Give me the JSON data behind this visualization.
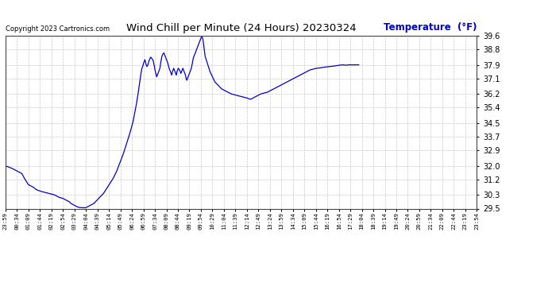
{
  "title": "Wind Chill per Minute (24 Hours) 20230324",
  "copyright": "Copyright 2023 Cartronics.com",
  "ylabel": "Temperature  (°F)",
  "ylabel_color": "#0000cc",
  "line_color": "#0000cc",
  "bg_color": "#ffffff",
  "grid_color": "#bbbbbb",
  "ylim": [
    29.5,
    39.6
  ],
  "yticks": [
    29.5,
    30.3,
    31.2,
    32.0,
    32.9,
    33.7,
    34.5,
    35.4,
    36.2,
    37.1,
    37.9,
    38.8,
    39.6
  ],
  "x_labels": [
    "23:59",
    "00:34",
    "01:09",
    "01:44",
    "02:19",
    "02:54",
    "03:29",
    "04:04",
    "04:39",
    "05:14",
    "05:49",
    "06:24",
    "06:59",
    "07:34",
    "08:09",
    "08:44",
    "09:19",
    "09:54",
    "10:29",
    "11:04",
    "11:39",
    "12:14",
    "12:49",
    "13:24",
    "13:59",
    "14:34",
    "15:09",
    "15:44",
    "16:19",
    "16:54",
    "17:29",
    "18:04",
    "18:39",
    "19:14",
    "19:49",
    "20:24",
    "20:59",
    "21:34",
    "22:09",
    "22:44",
    "23:19",
    "23:54"
  ],
  "data_points": [
    [
      0,
      32.0
    ],
    [
      20,
      31.85
    ],
    [
      35,
      31.7
    ],
    [
      50,
      31.55
    ],
    [
      60,
      31.2
    ],
    [
      65,
      31.05
    ],
    [
      70,
      30.9
    ],
    [
      85,
      30.75
    ],
    [
      95,
      30.6
    ],
    [
      110,
      30.5
    ],
    [
      130,
      30.4
    ],
    [
      150,
      30.3
    ],
    [
      165,
      30.15
    ],
    [
      175,
      30.1
    ],
    [
      185,
      30.0
    ],
    [
      195,
      29.9
    ],
    [
      200,
      29.8
    ],
    [
      205,
      29.75
    ],
    [
      210,
      29.7
    ],
    [
      215,
      29.65
    ],
    [
      220,
      29.6
    ],
    [
      225,
      29.57
    ],
    [
      230,
      29.56
    ],
    [
      235,
      29.55
    ],
    [
      240,
      29.55
    ],
    [
      245,
      29.55
    ],
    [
      250,
      29.6
    ],
    [
      260,
      29.7
    ],
    [
      270,
      29.8
    ],
    [
      280,
      30.0
    ],
    [
      290,
      30.2
    ],
    [
      300,
      30.4
    ],
    [
      310,
      30.7
    ],
    [
      320,
      31.0
    ],
    [
      330,
      31.3
    ],
    [
      340,
      31.7
    ],
    [
      350,
      32.2
    ],
    [
      360,
      32.7
    ],
    [
      370,
      33.3
    ],
    [
      380,
      33.9
    ],
    [
      390,
      34.6
    ],
    [
      395,
      35.1
    ],
    [
      400,
      35.6
    ],
    [
      405,
      36.2
    ],
    [
      408,
      36.6
    ],
    [
      411,
      37.0
    ],
    [
      414,
      37.4
    ],
    [
      417,
      37.7
    ],
    [
      420,
      37.85
    ],
    [
      422,
      38.0
    ],
    [
      424,
      38.1
    ],
    [
      426,
      38.2
    ],
    [
      428,
      38.05
    ],
    [
      430,
      37.9
    ],
    [
      432,
      37.8
    ],
    [
      434,
      37.85
    ],
    [
      436,
      37.95
    ],
    [
      438,
      38.1
    ],
    [
      440,
      38.2
    ],
    [
      442,
      38.3
    ],
    [
      444,
      38.35
    ],
    [
      446,
      38.3
    ],
    [
      448,
      38.25
    ],
    [
      450,
      38.2
    ],
    [
      452,
      38.1
    ],
    [
      454,
      37.9
    ],
    [
      456,
      37.7
    ],
    [
      458,
      37.5
    ],
    [
      460,
      37.35
    ],
    [
      462,
      37.2
    ],
    [
      464,
      37.3
    ],
    [
      466,
      37.4
    ],
    [
      468,
      37.5
    ],
    [
      470,
      37.6
    ],
    [
      472,
      37.7
    ],
    [
      474,
      38.0
    ],
    [
      476,
      38.2
    ],
    [
      478,
      38.4
    ],
    [
      480,
      38.5
    ],
    [
      482,
      38.55
    ],
    [
      484,
      38.6
    ],
    [
      486,
      38.5
    ],
    [
      488,
      38.4
    ],
    [
      490,
      38.3
    ],
    [
      492,
      38.2
    ],
    [
      494,
      38.1
    ],
    [
      496,
      38.0
    ],
    [
      498,
      37.85
    ],
    [
      500,
      37.7
    ],
    [
      502,
      37.6
    ],
    [
      504,
      37.5
    ],
    [
      506,
      37.4
    ],
    [
      508,
      37.3
    ],
    [
      510,
      37.5
    ],
    [
      512,
      37.6
    ],
    [
      514,
      37.7
    ],
    [
      516,
      37.6
    ],
    [
      518,
      37.5
    ],
    [
      520,
      37.4
    ],
    [
      522,
      37.3
    ],
    [
      524,
      37.5
    ],
    [
      526,
      37.6
    ],
    [
      528,
      37.7
    ],
    [
      530,
      37.65
    ],
    [
      532,
      37.6
    ],
    [
      534,
      37.5
    ],
    [
      536,
      37.4
    ],
    [
      538,
      37.5
    ],
    [
      540,
      37.6
    ],
    [
      542,
      37.7
    ],
    [
      544,
      37.6
    ],
    [
      546,
      37.5
    ],
    [
      548,
      37.4
    ],
    [
      550,
      37.3
    ],
    [
      552,
      37.1
    ],
    [
      554,
      37.0
    ],
    [
      556,
      37.1
    ],
    [
      558,
      37.2
    ],
    [
      560,
      37.3
    ],
    [
      562,
      37.4
    ],
    [
      564,
      37.5
    ],
    [
      566,
      37.6
    ],
    [
      568,
      37.7
    ],
    [
      570,
      37.9
    ],
    [
      572,
      38.1
    ],
    [
      574,
      38.3
    ],
    [
      576,
      38.4
    ],
    [
      578,
      38.5
    ],
    [
      580,
      38.6
    ],
    [
      582,
      38.7
    ],
    [
      584,
      38.8
    ],
    [
      586,
      38.9
    ],
    [
      588,
      39.0
    ],
    [
      590,
      39.1
    ],
    [
      592,
      39.2
    ],
    [
      594,
      39.3
    ],
    [
      596,
      39.4
    ],
    [
      598,
      39.5
    ],
    [
      600,
      39.55
    ],
    [
      602,
      39.5
    ],
    [
      604,
      39.3
    ],
    [
      606,
      39.0
    ],
    [
      608,
      38.7
    ],
    [
      610,
      38.4
    ],
    [
      615,
      38.1
    ],
    [
      620,
      37.8
    ],
    [
      625,
      37.5
    ],
    [
      630,
      37.3
    ],
    [
      635,
      37.1
    ],
    [
      640,
      36.9
    ],
    [
      650,
      36.7
    ],
    [
      660,
      36.5
    ],
    [
      670,
      36.4
    ],
    [
      680,
      36.3
    ],
    [
      690,
      36.2
    ],
    [
      700,
      36.15
    ],
    [
      710,
      36.1
    ],
    [
      720,
      36.05
    ],
    [
      730,
      36.0
    ],
    [
      740,
      35.95
    ],
    [
      745,
      35.9
    ],
    [
      750,
      35.9
    ],
    [
      755,
      35.95
    ],
    [
      760,
      36.0
    ],
    [
      765,
      36.05
    ],
    [
      770,
      36.1
    ],
    [
      775,
      36.15
    ],
    [
      780,
      36.2
    ],
    [
      790,
      36.25
    ],
    [
      800,
      36.3
    ],
    [
      810,
      36.4
    ],
    [
      820,
      36.5
    ],
    [
      830,
      36.6
    ],
    [
      840,
      36.7
    ],
    [
      850,
      36.8
    ],
    [
      860,
      36.9
    ],
    [
      870,
      37.0
    ],
    [
      880,
      37.1
    ],
    [
      890,
      37.2
    ],
    [
      900,
      37.3
    ],
    [
      910,
      37.4
    ],
    [
      920,
      37.5
    ],
    [
      930,
      37.6
    ],
    [
      940,
      37.65
    ],
    [
      950,
      37.7
    ],
    [
      960,
      37.72
    ],
    [
      970,
      37.75
    ],
    [
      980,
      37.78
    ],
    [
      990,
      37.8
    ],
    [
      1000,
      37.82
    ],
    [
      1010,
      37.85
    ],
    [
      1020,
      37.88
    ],
    [
      1030,
      37.9
    ],
    [
      1040,
      37.88
    ],
    [
      1050,
      37.9
    ],
    [
      1060,
      37.9
    ],
    [
      1070,
      37.9
    ],
    [
      1080,
      37.9
    ]
  ]
}
